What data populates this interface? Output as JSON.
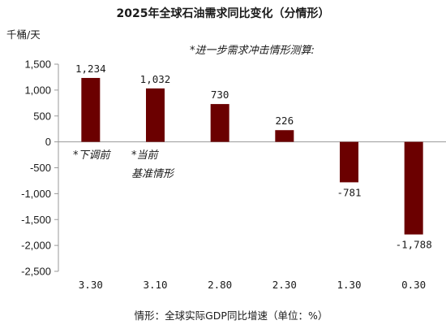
{
  "chart_data": {
    "type": "bar",
    "title": "2025年全球石油需求同比变化（分情形）",
    "unit_label": "千桶/天",
    "xlabel": "情形：全球实际GDP同比增速（单位：%）",
    "ylabel": "千桶/天",
    "categories": [
      "3.30",
      "3.10",
      "2.80",
      "2.30",
      "1.30",
      "0.30"
    ],
    "values": [
      1234,
      1032,
      730,
      226,
      -781,
      -1788
    ],
    "data_labels": [
      "1,234",
      "1,032",
      "730",
      "226",
      "-781",
      "-1,788"
    ],
    "ylim": [
      -2500,
      1500
    ],
    "yticks": [
      1500,
      1000,
      500,
      0,
      -500,
      -1000,
      -1500,
      -2000,
      -2500
    ],
    "ytick_labels": [
      "1,500",
      "1,000",
      "500",
      "0",
      "-500",
      "-1,000",
      "-1,500",
      "-2,000",
      "-2,500"
    ],
    "bar_color": "#6b0000",
    "grid": false,
    "legend": "none",
    "annotations": {
      "top_note": "*进一步需求冲击情形测算:",
      "note_1": "*下调前",
      "note_2_line1": "*当前",
      "note_2_line2": "基准情形"
    }
  }
}
